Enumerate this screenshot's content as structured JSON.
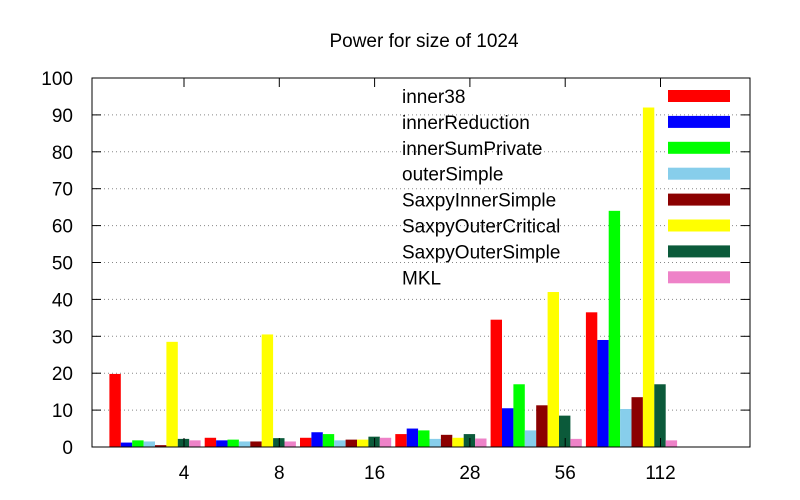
{
  "chart_data": {
    "type": "bar",
    "title": "Power for size of 1024",
    "xlabel": "",
    "ylabel": "",
    "ylim": [
      0,
      100
    ],
    "yticks": [
      0,
      10,
      20,
      30,
      40,
      50,
      60,
      70,
      80,
      90,
      100
    ],
    "ytick_labels": [
      "0",
      "10",
      "20",
      "30",
      "40",
      "50",
      "60",
      "70",
      "80",
      "90",
      "100"
    ],
    "categories": [
      "4",
      "8",
      "16",
      "28",
      "56",
      "112"
    ],
    "grid": "horizontal dotted",
    "legend_position": "top-right",
    "series": [
      {
        "name": "inner38",
        "color": "#ff0000",
        "values": [
          19.8,
          2.5,
          2.5,
          3.5,
          34.5,
          36.5
        ]
      },
      {
        "name": "innerReduction",
        "color": "#0000ff",
        "values": [
          1.2,
          1.8,
          4.0,
          5.0,
          10.5,
          29.0
        ]
      },
      {
        "name": "innerSumPrivate",
        "color": "#00ff00",
        "values": [
          1.8,
          2.0,
          3.5,
          4.5,
          17.0,
          64.0
        ]
      },
      {
        "name": "outerSimple",
        "color": "#87ceeb",
        "values": [
          1.5,
          1.5,
          1.8,
          2.2,
          4.5,
          10.3
        ]
      },
      {
        "name": "SaxpyInnerSimple",
        "color": "#8b0000",
        "values": [
          0.5,
          1.5,
          2.0,
          3.3,
          11.3,
          13.5
        ]
      },
      {
        "name": "SaxpyOuterCritical",
        "color": "#ffff00",
        "values": [
          28.5,
          30.5,
          2.0,
          2.5,
          42.0,
          92.0
        ]
      },
      {
        "name": "SaxpyOuterSimple",
        "color": "#0b5a3a",
        "values": [
          2.2,
          2.4,
          2.8,
          3.5,
          8.5,
          17.0
        ]
      },
      {
        "name": "MKL",
        "color": "#ee82c8",
        "values": [
          1.8,
          1.5,
          2.5,
          2.3,
          2.2,
          1.8
        ]
      }
    ]
  }
}
